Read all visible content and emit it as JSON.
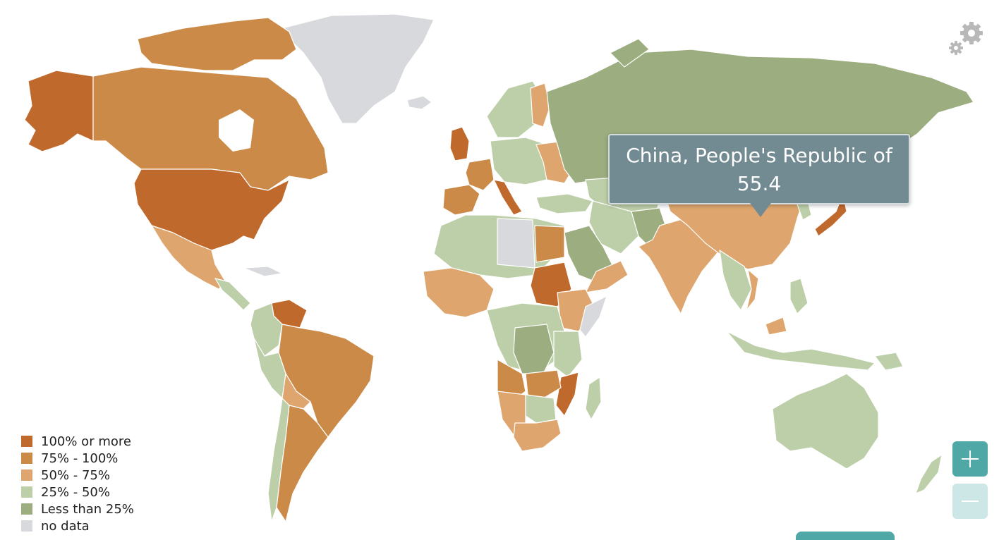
{
  "map": {
    "colors": {
      "100_or_more": "#c0692d",
      "75_to_100": "#cc8a48",
      "50_to_75": "#dea66e",
      "25_to_50": "#bdcfa8",
      "less_than_25": "#9cad80",
      "no_data": "#d8d9dd",
      "tooltip_bg": "#728a92",
      "zoom_accent": "#4fa8a6"
    }
  },
  "legend": {
    "items": [
      {
        "label": "100% or more",
        "color": "#c0692d"
      },
      {
        "label": "75% - 100%",
        "color": "#cc8a48"
      },
      {
        "label": "50% - 75%",
        "color": "#dea66e"
      },
      {
        "label": "25% - 50%",
        "color": "#bdcfa8"
      },
      {
        "label": "Less than 25%",
        "color": "#9cad80"
      },
      {
        "label": "no data",
        "color": "#d8d9dd"
      }
    ]
  },
  "tooltip": {
    "country": "China, People's Republic of",
    "value": "55.4"
  },
  "controls": {
    "zoom_in_icon": "plus-icon",
    "zoom_out_icon": "minus-icon",
    "settings_icon": "gear-icon"
  }
}
